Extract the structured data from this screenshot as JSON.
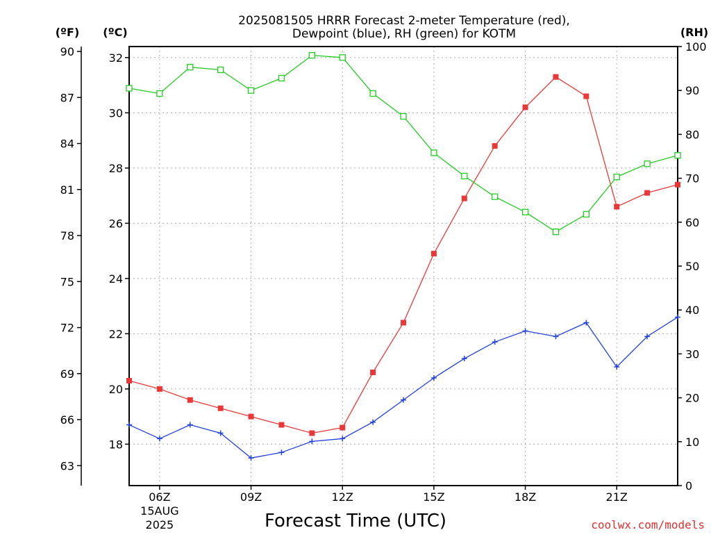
{
  "chart_data": {
    "type": "line",
    "title_lines": [
      "2025081505 HRRR Forecast 2-meter Temperature (red),",
      "Dewpoint (blue), RH (green) for KOTM"
    ],
    "xlabel": "Forecast Time (UTC)",
    "credit": "coolwx.com/models",
    "units": {
      "left_f": "(ºF)",
      "left_c": "(ºC)",
      "right_rh": "(RH)"
    },
    "x_hours": [
      5,
      6,
      7,
      8,
      9,
      10,
      11,
      12,
      13,
      14,
      15,
      16,
      17,
      18,
      19,
      20,
      21,
      22,
      23
    ],
    "xlim_hours": [
      5,
      23
    ],
    "x_ticks": [
      {
        "hour": 6,
        "label": "06Z",
        "sub": [
          "15AUG",
          "2025"
        ]
      },
      {
        "hour": 9,
        "label": "09Z"
      },
      {
        "hour": 12,
        "label": "12Z"
      },
      {
        "hour": 15,
        "label": "15Z"
      },
      {
        "hour": 18,
        "label": "18Z"
      },
      {
        "hour": 21,
        "label": "21Z"
      }
    ],
    "celsius_axis": {
      "ylim": [
        16.5,
        32.4
      ],
      "ticks": [
        18,
        20,
        22,
        24,
        26,
        28,
        30,
        32
      ],
      "label": "(ºC)"
    },
    "fahrenheit_axis": {
      "ticks": [
        63,
        66,
        69,
        72,
        75,
        78,
        81,
        84,
        87,
        90
      ],
      "label": "(ºF)"
    },
    "rh_axis": {
      "ylim": [
        0,
        100
      ],
      "ticks": [
        0,
        10,
        20,
        30,
        40,
        50,
        60,
        70,
        80,
        90,
        100
      ],
      "label": "(RH)"
    },
    "grid": true,
    "colors": {
      "temperature": "#e83838",
      "dewpoint": "#2040e0",
      "rh": "#22cc22",
      "credit": "#e03030"
    },
    "series": [
      {
        "name": "Temperature",
        "axis": "celsius",
        "marker": "filled-square",
        "values": [
          20.3,
          20.0,
          19.6,
          19.3,
          19.0,
          18.7,
          18.4,
          18.6,
          20.6,
          22.4,
          24.9,
          26.9,
          28.8,
          30.2,
          31.3,
          30.6,
          26.6,
          27.1,
          27.4
        ]
      },
      {
        "name": "Dewpoint",
        "axis": "celsius",
        "marker": "plus",
        "values": [
          18.7,
          18.2,
          18.7,
          18.4,
          17.5,
          17.7,
          18.1,
          18.2,
          18.8,
          19.6,
          20.4,
          21.1,
          21.7,
          22.1,
          21.9,
          22.4,
          20.8,
          21.9,
          22.6
        ]
      },
      {
        "name": "RH",
        "axis": "rh",
        "marker": "open-square",
        "values": [
          90.5,
          89.3,
          95.3,
          94.7,
          90.0,
          92.8,
          98.0,
          97.5,
          89.3,
          84.1,
          75.8,
          70.5,
          65.8,
          62.3,
          57.8,
          61.8,
          70.3,
          73.3,
          75.2
        ]
      }
    ]
  }
}
